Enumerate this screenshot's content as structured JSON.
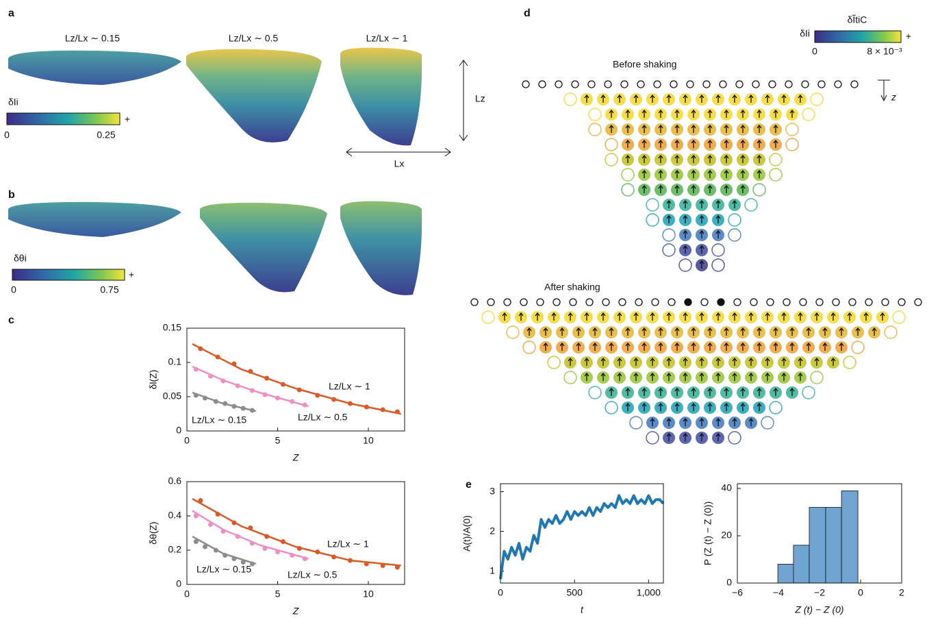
{
  "panel_labels": [
    "a",
    "b",
    "c",
    "d",
    "e"
  ],
  "panel_a": {
    "titles": [
      "Lz/Lx ∼ 0.15",
      "Lz/Lx ∼ 0.5",
      "Lz/Lx ∼ 1"
    ],
    "colorbar_label": "δIi",
    "colorbar_min": "0",
    "colorbar_max": "0.25",
    "colorbar_plus": "+",
    "lz": "Lz",
    "lx": "Lx"
  },
  "panel_b": {
    "colorbar_label": "δθi",
    "colorbar_min": "0",
    "colorbar_max": "0.75",
    "colorbar_plus": "+"
  },
  "panel_d": {
    "before": "Before shaking",
    "after": "After shaking",
    "colorbar_title": "δĨtiC",
    "colorbar_label": "δIi",
    "colorbar_min": "0",
    "colorbar_max": "8 × 10⁻³",
    "colorbar_plus": "+",
    "depth_axis": "z"
  },
  "chart_data": [
    {
      "type": "scatter",
      "x_label": "Z",
      "y_label": "δl(Z)",
      "xlim": [
        0,
        12
      ],
      "xticks": [
        0,
        5,
        10
      ],
      "ylim": [
        0,
        0.15
      ],
      "yticks": [
        0,
        0.05,
        0.1,
        0.15
      ],
      "series": [
        {
          "name": "Lz/Lx ∼ 1",
          "color": "#d95a27",
          "x": [
            0.75,
            1.7,
            2.6,
            3.5,
            4.4,
            5.3,
            6.2,
            7.2,
            8.1,
            9.0,
            9.9,
            10.8,
            11.6
          ],
          "values": [
            0.12,
            0.108,
            0.098,
            0.087,
            0.077,
            0.068,
            0.06,
            0.052,
            0.046,
            0.04,
            0.035,
            0.031,
            0.028
          ],
          "fit": {
            "x": [
              0.3,
              3,
              6,
              9,
              11.8
            ],
            "values": [
              0.127,
              0.09,
              0.062,
              0.04,
              0.025
            ]
          }
        },
        {
          "name": "Lz/Lx ∼ 0.5",
          "color": "#ee8fc4",
          "x": [
            0.5,
            1.3,
            2.0,
            2.8,
            3.6,
            4.3,
            5.0,
            5.8,
            6.5
          ],
          "values": [
            0.09,
            0.08,
            0.073,
            0.066,
            0.059,
            0.053,
            0.048,
            0.043,
            0.038
          ],
          "fit": {
            "x": [
              0.3,
              2,
              4,
              6.7
            ],
            "values": [
              0.094,
              0.074,
              0.056,
              0.036
            ]
          }
        },
        {
          "name": "Lz/Lx ∼ 0.15",
          "color": "#8c8c8c",
          "x": [
            0.5,
            1.0,
            1.6,
            2.1,
            2.6,
            3.1,
            3.6
          ],
          "values": [
            0.052,
            0.048,
            0.043,
            0.04,
            0.036,
            0.033,
            0.03
          ],
          "fit": {
            "x": [
              0.3,
              2,
              3.8
            ],
            "values": [
              0.056,
              0.04,
              0.029
            ]
          }
        }
      ]
    },
    {
      "type": "scatter",
      "x_label": "Z",
      "y_label": "δθ(Z)",
      "xlim": [
        0,
        12
      ],
      "xticks": [
        0,
        5,
        10
      ],
      "ylim": [
        0,
        0.6
      ],
      "yticks": [
        0,
        0.2,
        0.4,
        0.6
      ],
      "series": [
        {
          "name": "Lz/Lx ∼ 1",
          "color": "#d95a27",
          "x": [
            0.75,
            1.7,
            2.6,
            3.5,
            4.4,
            5.3,
            6.2,
            7.2,
            8.1,
            9.0,
            9.9,
            10.8,
            11.6
          ],
          "values": [
            0.49,
            0.41,
            0.36,
            0.33,
            0.28,
            0.25,
            0.21,
            0.19,
            0.16,
            0.14,
            0.12,
            0.11,
            0.1
          ],
          "fit": {
            "x": [
              0.3,
              3,
              6,
              9,
              11.8
            ],
            "values": [
              0.5,
              0.34,
              0.22,
              0.14,
              0.11
            ]
          }
        },
        {
          "name": "Lz/Lx ∼ 0.5",
          "color": "#ee8fc4",
          "x": [
            0.5,
            1.3,
            2.0,
            2.8,
            3.6,
            4.3,
            5.0,
            5.8,
            6.5
          ],
          "values": [
            0.4,
            0.35,
            0.31,
            0.28,
            0.24,
            0.21,
            0.19,
            0.17,
            0.15
          ],
          "fit": {
            "x": [
              0.3,
              2,
              4,
              6.7
            ],
            "values": [
              0.43,
              0.32,
              0.23,
              0.15
            ]
          }
        },
        {
          "name": "Lz/Lx ∼ 0.15",
          "color": "#8c8c8c",
          "x": [
            0.5,
            1.0,
            1.6,
            2.1,
            2.6,
            3.1,
            3.6
          ],
          "values": [
            0.25,
            0.22,
            0.2,
            0.17,
            0.15,
            0.13,
            0.12
          ],
          "fit": {
            "x": [
              0.3,
              2,
              3.8
            ],
            "values": [
              0.28,
              0.18,
              0.12
            ]
          }
        }
      ]
    },
    {
      "type": "line",
      "x_label": "t",
      "y_label": "A(t)/A(0)",
      "xlim": [
        0,
        1100
      ],
      "xticks": [
        0,
        500,
        {
          "value": 1000,
          "label": "1,000"
        }
      ],
      "ylim": [
        0.7,
        3.2
      ],
      "yticks": [
        1,
        2,
        3
      ],
      "series": [
        {
          "color": "#1f77b4",
          "x": [
            0,
            25,
            50,
            75,
            100,
            125,
            150,
            175,
            200,
            225,
            250,
            275,
            300,
            325,
            350,
            375,
            400,
            425,
            450,
            475,
            500,
            525,
            550,
            575,
            600,
            625,
            650,
            675,
            700,
            725,
            750,
            775,
            800,
            825,
            850,
            875,
            900,
            925,
            950,
            975,
            1000,
            1025,
            1050,
            1075,
            1100
          ],
          "values": [
            0.8,
            1.5,
            1.3,
            1.6,
            1.4,
            1.7,
            1.3,
            1.6,
            1.5,
            1.9,
            1.7,
            2.3,
            2.1,
            2.3,
            2.2,
            2.4,
            2.2,
            2.3,
            2.5,
            2.3,
            2.5,
            2.4,
            2.5,
            2.4,
            2.6,
            2.4,
            2.6,
            2.5,
            2.7,
            2.6,
            2.7,
            2.6,
            2.9,
            2.7,
            2.8,
            2.7,
            2.9,
            2.7,
            2.8,
            2.7,
            2.9,
            2.7,
            2.8,
            2.8,
            2.7
          ]
        }
      ]
    },
    {
      "type": "histogram",
      "x_label": "Z (t) − Z (0)",
      "y_label": "P (Z (t) − Z (0))",
      "color": "#6fa3d0",
      "xlim": [
        -6,
        2
      ],
      "xticks": [
        {
          "value": -6,
          "label": "−6"
        },
        {
          "value": -4,
          "label": "−4"
        },
        {
          "value": -2,
          "label": "−2"
        },
        0,
        2
      ],
      "ylim": [
        0,
        42
      ],
      "yticks": [
        0,
        20,
        40
      ],
      "bins": [
        -4.03,
        -3.27,
        -2.5,
        -1.7,
        -0.93,
        -0.13
      ],
      "values": [
        8,
        16,
        32,
        32,
        39
      ]
    }
  ]
}
